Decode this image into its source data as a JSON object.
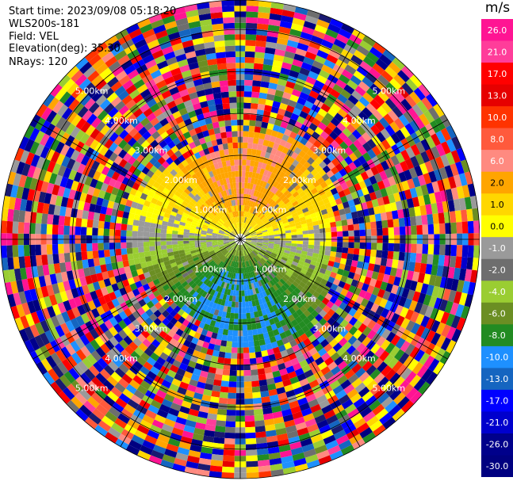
{
  "info": {
    "start_time": "Start time: 2023/09/08 05:18:20",
    "device": "WLS200s-181",
    "field": "Field: VEL",
    "elevation": "Elevation(deg): 35.30",
    "nrays": "NRays: 120"
  },
  "chart_data": {
    "type": "heatmap",
    "projection": "polar-ppi",
    "field": "VEL",
    "unit": "m/s",
    "rings": [
      "1.00km",
      "2.00km",
      "3.00km",
      "4.00km",
      "5.00km"
    ],
    "max_range_km": 5.7,
    "nrays": 120,
    "colorbar": {
      "unit": "m/s",
      "levels": [
        26.0,
        21.0,
        17.0,
        13.0,
        10.0,
        8.0,
        6.0,
        2.0,
        1.0,
        0.0,
        -1.0,
        -2.0,
        -4.0,
        -6.0,
        -8.0,
        -10.0,
        -13.0,
        -17.0,
        -21.0,
        -26.0,
        -30.0
      ],
      "labels": [
        "26.0",
        "21.0",
        "17.0",
        "13.0",
        "10.0",
        "8.0",
        "6.0",
        "2.0",
        "1.0",
        "0.0",
        "-1.0",
        "-2.0",
        "-4.0",
        "-6.0",
        "-8.0",
        "-10.0",
        "-13.0",
        "-17.0",
        "-21.0",
        "-26.0",
        "-30.0"
      ],
      "colors": [
        "#ff1493",
        "#ff3d9a",
        "#ff0000",
        "#e60000",
        "#ff3300",
        "#ff5a3c",
        "#ff8a80",
        "#ffa500",
        "#ffd700",
        "#ffff00",
        "#9a9a9a",
        "#6e6e6e",
        "#9acd32",
        "#6b8e23",
        "#228b22",
        "#1e90ff",
        "#1565c0",
        "#0000ff",
        "#0000cd",
        "#00008b",
        "#000080",
        "#191970"
      ]
    }
  }
}
